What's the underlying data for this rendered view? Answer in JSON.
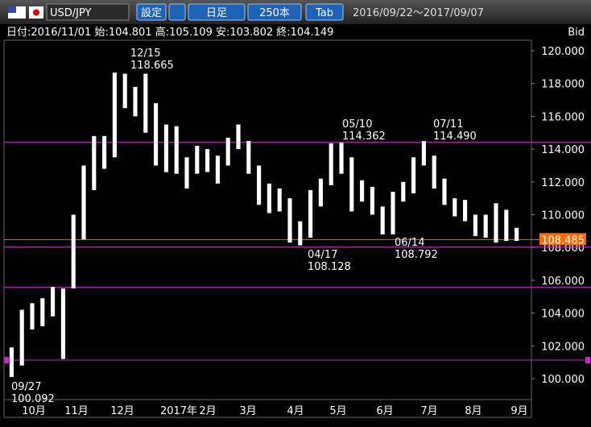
{
  "header": {
    "pair": "USD/JPY",
    "settings": "設定",
    "period": "日足",
    "count": "250本",
    "tab": "Tab",
    "range": "2016/09/22～2017/09/07"
  },
  "info": "日付:2016/11/01 始:104.801 高:105.109 安:103.802 終:104.149",
  "chart_data": {
    "type": "range-bar",
    "y_axis_label": "Bid",
    "color": "#ffffff",
    "bars": [
      [
        100.1,
        101.9
      ],
      [
        100.8,
        104.2
      ],
      [
        103.0,
        104.6
      ],
      [
        103.2,
        104.9
      ],
      [
        103.8,
        105.6
      ],
      [
        101.2,
        105.5
      ],
      [
        105.5,
        110.0
      ],
      [
        108.5,
        113.0
      ],
      [
        111.5,
        114.8
      ],
      [
        112.8,
        114.8
      ],
      [
        113.5,
        118.665
      ],
      [
        116.5,
        118.6
      ],
      [
        116.0,
        117.8
      ],
      [
        115.0,
        118.6
      ],
      [
        113.0,
        116.8
      ],
      [
        112.6,
        115.5
      ],
      [
        112.5,
        115.4
      ],
      [
        111.6,
        113.5
      ],
      [
        112.5,
        114.2
      ],
      [
        112.6,
        114.0
      ],
      [
        111.9,
        113.6
      ],
      [
        113.0,
        114.7
      ],
      [
        114.0,
        115.5
      ],
      [
        112.5,
        114.5
      ],
      [
        110.6,
        113.0
      ],
      [
        110.1,
        111.9
      ],
      [
        110.2,
        111.6
      ],
      [
        108.3,
        111.0
      ],
      [
        108.128,
        109.6
      ],
      [
        108.6,
        111.5
      ],
      [
        110.5,
        112.2
      ],
      [
        111.8,
        114.362
      ],
      [
        112.5,
        114.4
      ],
      [
        110.2,
        113.5
      ],
      [
        110.8,
        112.1
      ],
      [
        110.0,
        111.7
      ],
      [
        108.792,
        110.5
      ],
      [
        108.8,
        111.4
      ],
      [
        110.8,
        112.0
      ],
      [
        111.3,
        113.5
      ],
      [
        113.0,
        114.49
      ],
      [
        111.6,
        113.6
      ],
      [
        110.6,
        112.2
      ],
      [
        109.9,
        111.0
      ],
      [
        109.6,
        110.9
      ],
      [
        108.7,
        110.0
      ],
      [
        108.6,
        110.0
      ],
      [
        108.3,
        110.7
      ],
      [
        108.4,
        110.3
      ],
      [
        108.4,
        109.2
      ]
    ],
    "ylim": [
      98.72,
      120.64
    ],
    "yticks": [
      {
        "value": 100,
        "label": "100.000"
      },
      {
        "value": 102,
        "label": "102.000"
      },
      {
        "value": 104,
        "label": "104.000"
      },
      {
        "value": 106,
        "label": "106.000"
      },
      {
        "value": 108,
        "label": "108.000"
      },
      {
        "value": 110,
        "label": "110.000"
      },
      {
        "value": 112,
        "label": "112.000"
      },
      {
        "value": 114,
        "label": "114.000"
      },
      {
        "value": 116,
        "label": "116.000"
      },
      {
        "value": 118,
        "label": "118.000"
      },
      {
        "value": 120,
        "label": "120.000"
      }
    ],
    "x_labels": [
      "10月",
      "11月",
      "12月",
      "2017年",
      "2月",
      "3月",
      "4月",
      "5月",
      "6月",
      "7月",
      "8月",
      "9月"
    ],
    "hlines": [
      114.43,
      108.03,
      105.57,
      101.13
    ],
    "hline_color": "#d020d0",
    "current": {
      "value": 108.485,
      "label": "108.485",
      "color": "#ff6a00"
    },
    "annotations": [
      {
        "date": "12/15",
        "value": "118.665"
      },
      {
        "date": "05/10",
        "value": "114.362"
      },
      {
        "date": "07/11",
        "value": "114.490"
      },
      {
        "date": "04/17",
        "value": "108.128"
      },
      {
        "date": "06/14",
        "value": "108.792"
      },
      {
        "date": "09/27",
        "value": "100.092"
      }
    ]
  }
}
